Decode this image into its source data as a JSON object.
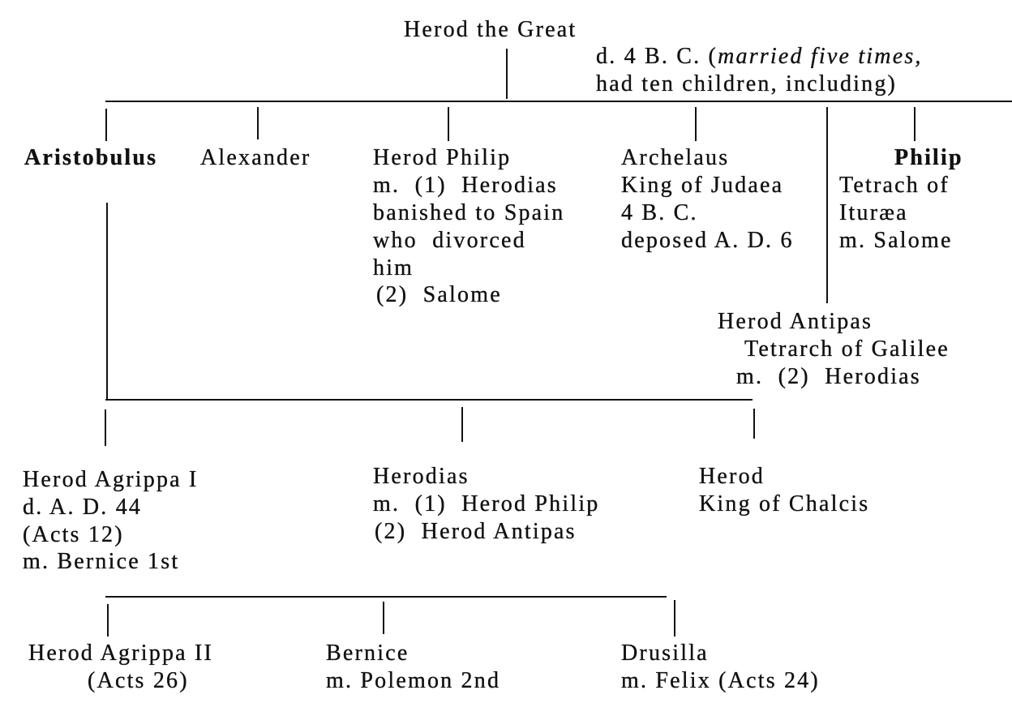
{
  "root": {
    "name": "Herod the Great",
    "note1_a": "d. 4 B. C. (",
    "note1_b": "married five times,",
    "note2": "had ten children, including)"
  },
  "gen1": {
    "aristobulus": [
      "Aristobulus"
    ],
    "alexander": [
      "Alexander"
    ],
    "herod_philip": [
      "Herod Philip",
      "m.  (1)  Herodias",
      "banished to Spain",
      "who  divorced",
      "him",
      "(2)  Salome"
    ],
    "archelaus": [
      "Archelaus",
      "King of Judaea",
      "4 B. C.",
      "deposed A. D. 6"
    ],
    "philip": [
      "Philip",
      "Tetrach of",
      "Ituræa",
      "m. Salome"
    ],
    "herod_antipas": [
      "Herod Antipas",
      "Tetrarch of Galilee",
      "m.  (2)  Herodias"
    ]
  },
  "gen2": {
    "agrippa1": [
      "Herod Agrippa I",
      "d. A. D. 44",
      "(Acts 12)",
      "m. Bernice 1st"
    ],
    "herodias": [
      "Herodias",
      "m.  (1)  Herod Philip",
      "(2)  Herod Antipas"
    ],
    "herod_chalcis": [
      "Herod",
      "King of Chalcis"
    ]
  },
  "gen3": {
    "agrippa2": [
      "Herod Agrippa II",
      "(Acts 26)"
    ],
    "bernice": [
      "Bernice",
      "m. Polemon 2nd"
    ],
    "drusilla": [
      "Drusilla",
      "m. Felix (Acts 24)"
    ]
  }
}
